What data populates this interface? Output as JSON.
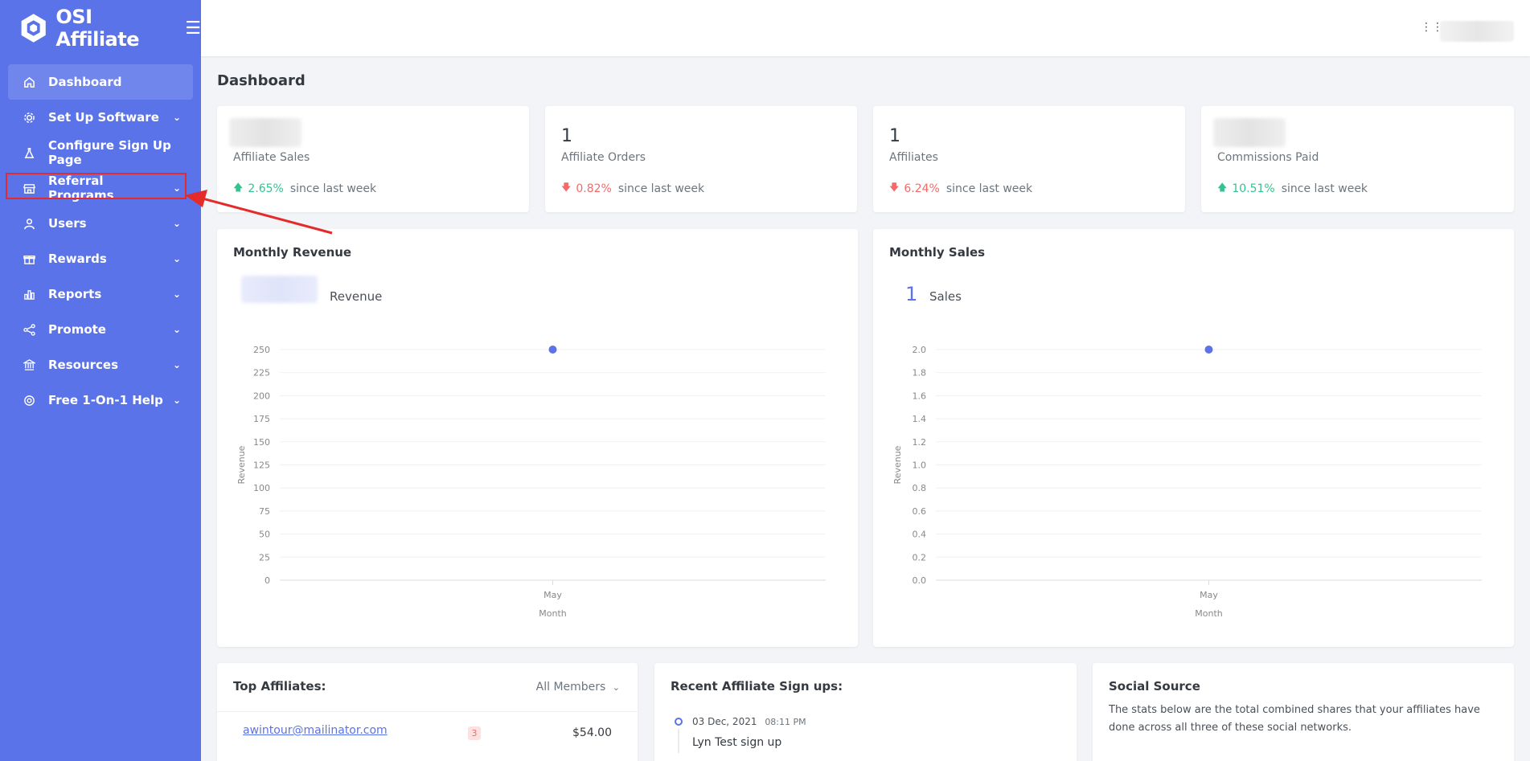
{
  "brand": {
    "name": "OSI Affiliate"
  },
  "sidebar": {
    "items": [
      {
        "label": "Dashboard",
        "icon": "home-icon",
        "active": true,
        "has_chevron": false
      },
      {
        "label": "Set Up Software",
        "icon": "gear-icon",
        "has_chevron": true
      },
      {
        "label": "Configure Sign Up Page",
        "icon": "flask-icon",
        "has_chevron": false
      },
      {
        "label": "Referral Programs",
        "icon": "store-icon",
        "has_chevron": true
      },
      {
        "label": "Users",
        "icon": "user-icon",
        "has_chevron": true
      },
      {
        "label": "Rewards",
        "icon": "gift-icon",
        "has_chevron": true
      },
      {
        "label": "Reports",
        "icon": "bar-chart-icon",
        "has_chevron": true
      },
      {
        "label": "Promote",
        "icon": "share-icon",
        "has_chevron": true
      },
      {
        "label": "Resources",
        "icon": "bank-icon",
        "has_chevron": true
      },
      {
        "label": "Free 1-On-1 Help",
        "icon": "lifebuoy-icon",
        "has_chevron": true
      }
    ]
  },
  "page": {
    "title": "Dashboard"
  },
  "stats": [
    {
      "value": "",
      "label": "Affiliate Sales",
      "change": "2.65%",
      "direction": "up",
      "since": "since last week"
    },
    {
      "value": "1",
      "label": "Affiliate Orders",
      "change": "0.82%",
      "direction": "down",
      "since": "since last week"
    },
    {
      "value": "1",
      "label": "Affiliates",
      "change": "6.24%",
      "direction": "down",
      "since": "since last week"
    },
    {
      "value": "",
      "label": "Commissions Paid",
      "change": "10.51%",
      "direction": "up",
      "since": "since last week"
    }
  ],
  "revenue_card": {
    "title": "Monthly Revenue",
    "value_label": "Revenue"
  },
  "sales_card": {
    "title": "Monthly Sales",
    "value": "1",
    "value_label": "Sales"
  },
  "chart_data": [
    {
      "type": "scatter",
      "title": "Monthly Revenue",
      "xlabel": "Month",
      "ylabel": "Revenue",
      "categories": [
        "May"
      ],
      "values": [
        250
      ],
      "ylim": [
        0,
        250
      ],
      "yticks": [
        "0",
        "25",
        "50",
        "75",
        "100",
        "125",
        "150",
        "175",
        "200",
        "225",
        "250"
      ],
      "color": "#5b73e8"
    },
    {
      "type": "scatter",
      "title": "Monthly Sales",
      "xlabel": "Month",
      "ylabel": "Revenue",
      "categories": [
        "May"
      ],
      "values": [
        2.0
      ],
      "ylim": [
        0,
        2.0
      ],
      "yticks": [
        "0.0",
        "0.2",
        "0.4",
        "0.6",
        "0.8",
        "1.0",
        "1.2",
        "1.4",
        "1.6",
        "1.8",
        "2.0"
      ],
      "color": "#5b73e8"
    }
  ],
  "top_affiliates": {
    "title": "Top Affiliates:",
    "filter": "All Members",
    "rows": [
      {
        "email": "awintour@mailinator.com",
        "count": "3",
        "amount": "$54.00"
      }
    ]
  },
  "recent_signups": {
    "title": "Recent Affiliate Sign ups:",
    "items": [
      {
        "date": "03 Dec, 2021",
        "time": "08:11 PM",
        "event": "Lyn Test sign up"
      }
    ]
  },
  "social_source": {
    "title": "Social Source",
    "description": "The stats below are the total combined shares that your affiliates have done across all three of these social networks."
  }
}
